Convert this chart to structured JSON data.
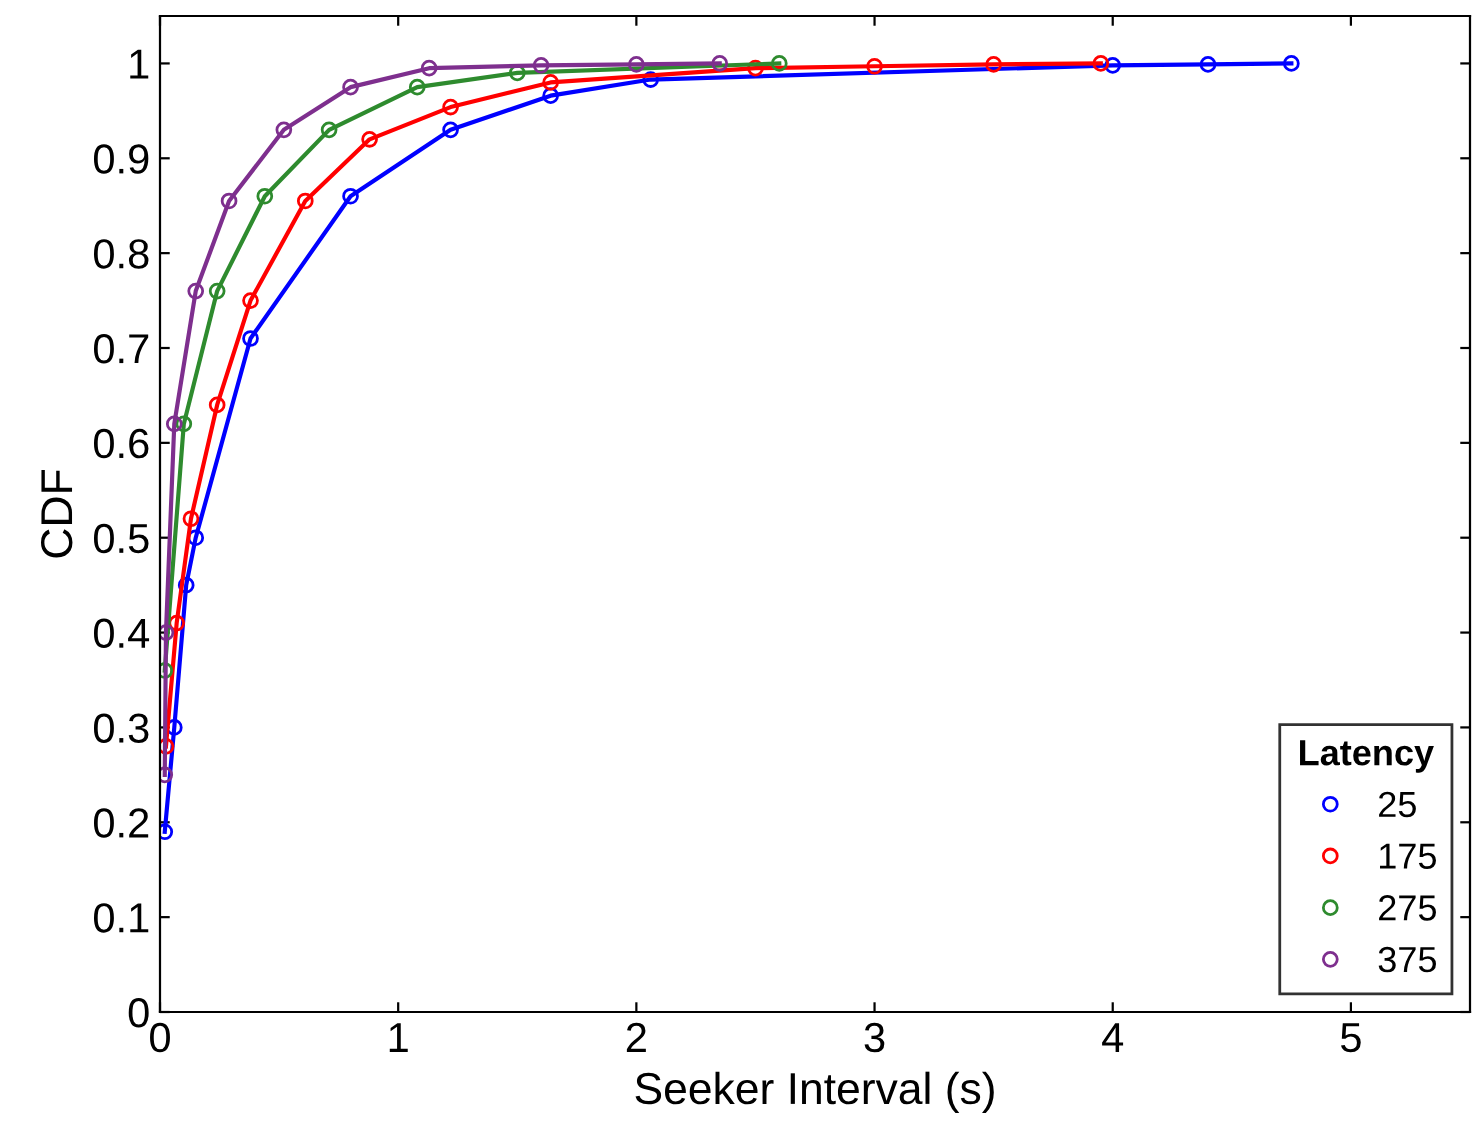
{
  "chart_data": {
    "type": "line",
    "xlabel": "Seeker Interval (s)",
    "ylabel": "CDF",
    "legend_title": "Latency",
    "legend": "bottom right",
    "marker": "circle",
    "line_style": "solid",
    "grid": false,
    "xlim": [
      0,
      5.5
    ],
    "xticks": [
      0,
      1,
      2,
      3,
      4,
      5
    ],
    "ylim": [
      0,
      1.05
    ],
    "yticks": [
      0,
      0.1,
      0.2,
      0.3,
      0.4,
      0.5,
      0.6,
      0.7,
      0.8,
      0.9,
      1
    ],
    "series": [
      {
        "name": "25",
        "color": "#0000ff",
        "x": [
          0.02,
          0.06,
          0.11,
          0.15,
          0.38,
          0.8,
          1.22,
          1.64,
          2.06,
          4,
          4.4,
          4.75
        ],
        "values": [
          0.19,
          0.3,
          0.45,
          0.5,
          0.71,
          0.86,
          0.93,
          0.966,
          0.983,
          0.998,
          0.999,
          1.0
        ]
      },
      {
        "name": "175",
        "color": "#ff0000",
        "x": [
          0.025,
          0.07,
          0.13,
          0.24,
          0.38,
          0.61,
          0.88,
          1.22,
          1.64,
          2.5,
          3.0,
          3.5,
          3.95
        ],
        "values": [
          0.28,
          0.41,
          0.52,
          0.64,
          0.75,
          0.855,
          0.92,
          0.954,
          0.98,
          0.995,
          0.997,
          0.999,
          1.0
        ]
      },
      {
        "name": "275",
        "color": "#2e8b2e",
        "x": [
          0.02,
          0.1,
          0.24,
          0.44,
          0.71,
          1.08,
          1.5,
          2.6
        ],
        "values": [
          0.36,
          0.62,
          0.76,
          0.86,
          0.93,
          0.975,
          0.99,
          1.0
        ]
      },
      {
        "name": "375",
        "color": "#7e2f8e",
        "x": [
          0.02,
          0.025,
          0.06,
          0.15,
          0.29,
          0.52,
          0.8,
          1.13,
          1.6,
          2.0,
          2.35
        ],
        "values": [
          0.25,
          0.4,
          0.62,
          0.76,
          0.855,
          0.93,
          0.975,
          0.995,
          0.998,
          0.999,
          1.0
        ]
      }
    ]
  }
}
